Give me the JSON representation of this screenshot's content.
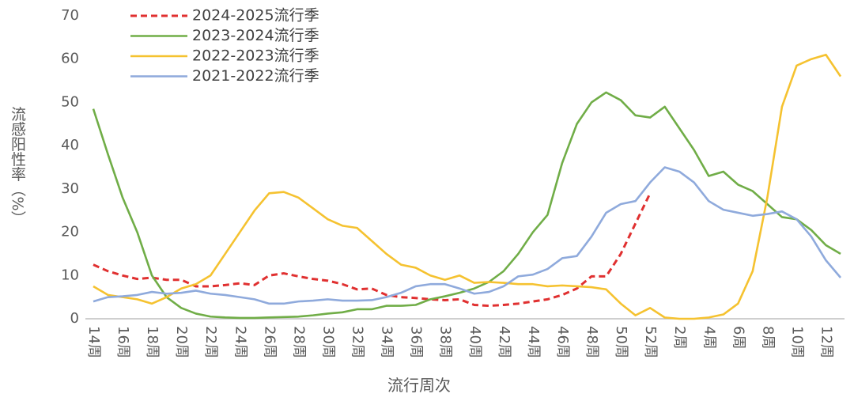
{
  "chart_data": {
    "type": "line",
    "y_label": "流感阳性率（%）",
    "x_label": "流行周次",
    "categories": [
      "14周",
      null,
      "16周",
      null,
      "18周",
      null,
      "20周",
      null,
      "22周",
      null,
      "24周",
      null,
      "26周",
      null,
      "28周",
      null,
      "30周",
      null,
      "32周",
      null,
      "34周",
      null,
      "36周",
      null,
      "38周",
      null,
      "40周",
      null,
      "42周",
      null,
      "44周",
      null,
      "46周",
      null,
      "48周",
      null,
      "50周",
      null,
      "52周",
      null,
      "2周",
      null,
      "4周",
      null,
      "6周",
      null,
      "8周",
      null,
      "10周",
      null,
      "12周",
      null
    ],
    "ylim": [
      0,
      70
    ],
    "yticks": [
      0,
      10,
      20,
      30,
      40,
      50,
      60,
      70
    ],
    "legend": "top-left",
    "series": [
      {
        "name": "2024-2025流行季",
        "color": "#e03030",
        "dashed": true,
        "values": [
          12.5,
          11,
          10,
          9.2,
          9.5,
          9,
          9,
          7.5,
          7.5,
          7.8,
          8.2,
          7.8,
          10,
          10.5,
          9.8,
          9.2,
          8.8,
          8,
          6.8,
          7,
          5.5,
          5,
          4.8,
          4.5,
          4.3,
          4.5,
          3.2,
          3,
          3.2,
          3.5,
          4,
          4.5,
          5.5,
          7,
          9.8,
          9.8,
          15,
          22,
          29,
          null,
          null,
          null,
          null,
          null,
          null,
          null,
          null,
          null,
          null,
          null,
          null,
          null
        ]
      },
      {
        "name": "2023-2024流行季",
        "color": "#70ad47",
        "values": [
          48.5,
          38,
          28,
          20,
          10,
          5,
          2.5,
          1.2,
          0.5,
          0.3,
          0.2,
          0.2,
          0.3,
          0.4,
          0.5,
          0.8,
          1.2,
          1.5,
          2.2,
          2.2,
          3,
          3,
          3.2,
          4.5,
          5.2,
          6,
          7,
          8.5,
          11,
          15,
          20,
          24,
          36,
          45,
          50,
          52.3,
          50.5,
          47,
          46.5,
          49,
          44,
          39,
          33,
          34,
          31,
          29.5,
          26.5,
          23.5,
          23,
          20.5,
          17,
          15
        ]
      },
      {
        "name": "2022-2023流行季",
        "color": "#f5c230",
        "values": [
          7.5,
          5.5,
          5,
          4.5,
          3.5,
          5,
          7,
          8,
          10,
          15,
          20,
          25,
          29,
          29.3,
          28,
          25.5,
          23,
          21.5,
          21,
          18,
          15,
          12.5,
          11.8,
          10,
          9,
          10,
          8.3,
          8.5,
          8.3,
          8,
          8,
          7.5,
          7.7,
          7.5,
          7.3,
          6.8,
          3.5,
          0.8,
          2.5,
          0.3,
          0,
          0,
          0.3,
          1,
          3.5,
          11,
          28,
          49,
          58.5,
          60,
          61,
          56
        ]
      },
      {
        "name": "2021-2022流行季",
        "color": "#8faadc",
        "values": [
          4,
          5,
          5.2,
          5.5,
          6.2,
          5.8,
          6,
          6.5,
          5.8,
          5.5,
          5,
          4.5,
          3.5,
          3.5,
          4,
          4.2,
          4.5,
          4.2,
          4.2,
          4.3,
          5,
          6,
          7.5,
          8,
          8,
          7,
          5.8,
          6.2,
          7.5,
          9.8,
          10.2,
          11.5,
          14,
          14.5,
          19,
          24.5,
          26.5,
          27.2,
          31.5,
          35,
          34,
          31.5,
          27.2,
          25.2,
          24.5,
          23.8,
          24.2,
          24.8,
          23,
          19,
          13.5,
          9.5
        ]
      }
    ]
  }
}
